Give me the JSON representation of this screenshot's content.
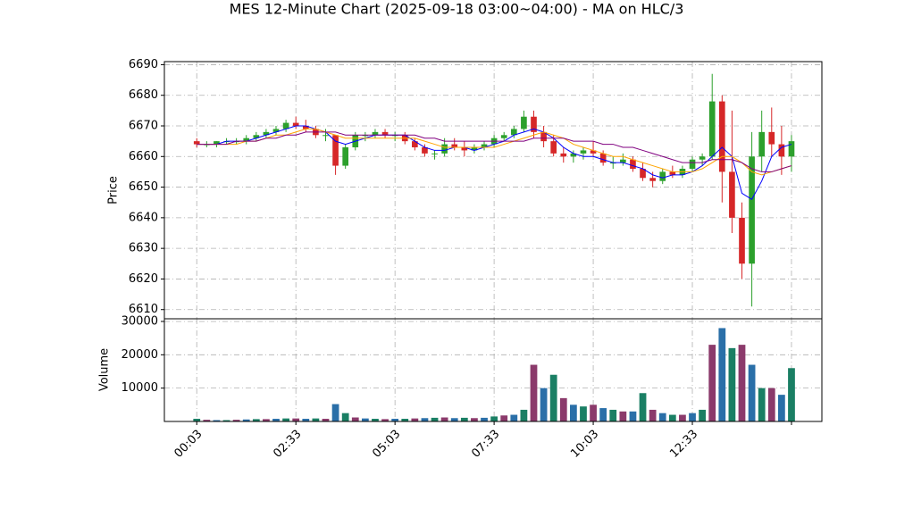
{
  "chart_data": [
    {
      "type": "candlestick",
      "title": "MES 12-Minute Chart (2025-09-18 03:00~04:00) - MA on HLC/3",
      "ylabel": "Price",
      "x": [
        0,
        15,
        30,
        45,
        60,
        75,
        90,
        105,
        120,
        135,
        150,
        165,
        180,
        195,
        210,
        225,
        240,
        255,
        270,
        285,
        300,
        315,
        330,
        345,
        360,
        375,
        390,
        405,
        420,
        435,
        450,
        465,
        480,
        495,
        510,
        525,
        540,
        555,
        570,
        585,
        600,
        615,
        630,
        645,
        660,
        675,
        690,
        705,
        720,
        735,
        750,
        765,
        780,
        795,
        810,
        825,
        840,
        855,
        870,
        885,
        900
      ],
      "open": [
        6665,
        6664,
        6664,
        6665,
        6665,
        6665,
        6666,
        6667,
        6668,
        6669,
        6671,
        6670,
        6669,
        6667,
        6667,
        6657,
        6663,
        6667,
        6667,
        6668,
        6667,
        6667,
        6665,
        6663,
        6661,
        6661,
        6664,
        6663,
        6662,
        6663,
        6664,
        6666,
        6667,
        6669,
        6673,
        6668,
        6665,
        6661,
        6660,
        6661,
        6662,
        6661,
        6658,
        6658,
        6659,
        6656,
        6653,
        6652,
        6655,
        6654,
        6656,
        6659,
        6660,
        6678,
        6655,
        6640,
        6625,
        6660,
        6668,
        6664,
        6660
      ],
      "high": [
        6666,
        6665,
        6665,
        6666,
        6666,
        6667,
        6668,
        6669,
        6670,
        6672,
        6673,
        6672,
        6670,
        6669,
        6667,
        6664,
        6668,
        6668,
        6669,
        6669,
        6668,
        6668,
        6666,
        6664,
        6662,
        6666,
        6666,
        6665,
        6664,
        6665,
        6667,
        6668,
        6670,
        6675,
        6675,
        6670,
        6667,
        6663,
        6662,
        6663,
        6665,
        6662,
        6660,
        6661,
        6660,
        6658,
        6655,
        6656,
        6657,
        6657,
        6660,
        6661,
        6687,
        6680,
        6675,
        6645,
        6668,
        6675,
        6676,
        6670,
        6667
      ],
      "low": [
        6663,
        6663,
        6663,
        6664,
        6664,
        6664,
        6665,
        6666,
        6667,
        6668,
        6669,
        6668,
        6666,
        6665,
        6654,
        6656,
        6662,
        6665,
        6666,
        6666,
        6665,
        6664,
        6662,
        6660,
        6659,
        6660,
        6662,
        6660,
        6661,
        6662,
        6663,
        6665,
        6666,
        6668,
        6666,
        6663,
        6660,
        6658,
        6658,
        6659,
        6660,
        6657,
        6656,
        6657,
        6655,
        6652,
        6650,
        6651,
        6653,
        6653,
        6655,
        6657,
        6659,
        6645,
        6635,
        6620,
        6611,
        6655,
        6660,
        6654,
        6655
      ],
      "close": [
        6664,
        6664,
        6665,
        6665,
        6665,
        6666,
        6667,
        6668,
        6669,
        6671,
        6670,
        6669,
        6667,
        6667,
        6657,
        6663,
        6667,
        6667,
        6668,
        6667,
        6667,
        6665,
        6663,
        6661,
        6661,
        6664,
        6663,
        6662,
        6663,
        6664,
        6666,
        6667,
        6669,
        6673,
        6668,
        6665,
        6661,
        6660,
        6661,
        6662,
        6661,
        6658,
        6658,
        6659,
        6656,
        6653,
        6652,
        6655,
        6654,
        6656,
        6659,
        6660,
        6678,
        6655,
        6640,
        6625,
        6660,
        6668,
        6664,
        6660,
        6665
      ],
      "up_color": "#2ca02c",
      "down_color": "#d62728",
      "series": [
        {
          "color": "#0000ff",
          "values": [
            6664,
            6664,
            6664,
            6665,
            6665,
            6665,
            6666,
            6667,
            6668,
            6669,
            6670,
            6670,
            6669,
            6668,
            6665,
            6664,
            6665,
            6666,
            6667,
            6667,
            6667,
            6667,
            6665,
            6663,
            6662,
            6662,
            6663,
            6663,
            6662,
            6663,
            6664,
            6665,
            6667,
            6668,
            6669,
            6668,
            6666,
            6663,
            6661,
            6660,
            6660,
            6659,
            6658,
            6658,
            6657,
            6656,
            6654,
            6653,
            6654,
            6654,
            6655,
            6657,
            6660,
            6663,
            6660,
            6648,
            6646,
            6652,
            6660,
            6663,
            6664
          ]
        },
        {
          "color": "#ffa500",
          "values": [
            6664,
            6664,
            6664,
            6664,
            6664,
            6665,
            6665,
            6666,
            6667,
            6667,
            6668,
            6669,
            6669,
            6668,
            6667,
            6666,
            6666,
            6666,
            6666,
            6666,
            6666,
            6666,
            6666,
            6665,
            6664,
            6663,
            6663,
            6663,
            6663,
            6663,
            6663,
            6664,
            6665,
            6666,
            6667,
            6668,
            6667,
            6666,
            6664,
            6663,
            6662,
            6661,
            6660,
            6660,
            6659,
            6658,
            6657,
            6656,
            6655,
            6655,
            6655,
            6656,
            6658,
            6660,
            6660,
            6658,
            6655,
            6654,
            6655,
            6656,
            6657
          ]
        },
        {
          "color": "#800080",
          "values": [
            6664,
            6664,
            6664,
            6664,
            6665,
            6665,
            6665,
            6666,
            6666,
            6667,
            6667,
            6668,
            6668,
            6668,
            6668,
            6667,
            6667,
            6667,
            6667,
            6667,
            6667,
            6667,
            6667,
            6666,
            6666,
            6665,
            6665,
            6665,
            6665,
            6665,
            6665,
            6665,
            6665,
            6665,
            6666,
            6666,
            6666,
            6666,
            6665,
            6665,
            6665,
            6664,
            6664,
            6663,
            6663,
            6662,
            6661,
            6660,
            6659,
            6658,
            6658,
            6658,
            6659,
            6659,
            6659,
            6658,
            6656,
            6655,
            6655,
            6656,
            6657
          ]
        }
      ],
      "xlim": [
        -49,
        946
      ],
      "xticks": [
        {
          "value": 0,
          "label": "00:03"
        },
        {
          "value": 150,
          "label": "02:33"
        },
        {
          "value": 300,
          "label": "05:03"
        },
        {
          "value": 450,
          "label": "07:33"
        },
        {
          "value": 600,
          "label": "10:03"
        },
        {
          "value": 750,
          "label": "12:33"
        },
        {
          "value": 900,
          "label": null
        }
      ],
      "ylim": [
        6607,
        6691
      ],
      "yticks": [
        6610,
        6620,
        6630,
        6640,
        6650,
        6660,
        6670,
        6680,
        6690
      ],
      "grid": true
    },
    {
      "type": "bar",
      "ylabel": "Volume",
      "values": [
        800,
        500,
        400,
        400,
        500,
        600,
        700,
        700,
        800,
        900,
        900,
        800,
        900,
        800,
        5200,
        2500,
        1200,
        900,
        800,
        700,
        800,
        800,
        900,
        1000,
        1100,
        1200,
        1000,
        1100,
        1000,
        1100,
        1500,
        1800,
        2000,
        3500,
        17000,
        10000,
        14000,
        7000,
        5000,
        4500,
        5000,
        4000,
        3500,
        3000,
        3000,
        8500,
        3500,
        2500,
        2000,
        2000,
        2500,
        3500,
        23000,
        28000,
        22000,
        23000,
        17000,
        10000,
        10000,
        8000,
        16000
      ],
      "colors": [
        "#1a7f64",
        "#8b3a6b",
        "#2a6fa8"
      ],
      "ylim": [
        0,
        30800
      ],
      "yticks": [
        10000,
        20000,
        30000
      ],
      "grid": true
    }
  ]
}
